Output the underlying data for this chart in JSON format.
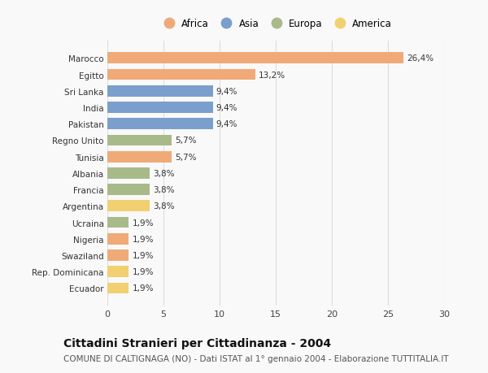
{
  "categories": [
    "Marocco",
    "Egitto",
    "Sri Lanka",
    "India",
    "Pakistan",
    "Regno Unito",
    "Tunisia",
    "Albania",
    "Francia",
    "Argentina",
    "Ucraina",
    "Nigeria",
    "Swaziland",
    "Rep. Dominicana",
    "Ecuador"
  ],
  "values": [
    26.4,
    13.2,
    9.4,
    9.4,
    9.4,
    5.7,
    5.7,
    3.8,
    3.8,
    3.8,
    1.9,
    1.9,
    1.9,
    1.9,
    1.9
  ],
  "labels": [
    "26,4%",
    "13,2%",
    "9,4%",
    "9,4%",
    "9,4%",
    "5,7%",
    "5,7%",
    "3,8%",
    "3,8%",
    "3,8%",
    "1,9%",
    "1,9%",
    "1,9%",
    "1,9%",
    "1,9%"
  ],
  "continents": [
    "Africa",
    "Africa",
    "Asia",
    "Asia",
    "Asia",
    "Europa",
    "Africa",
    "Europa",
    "Europa",
    "America",
    "Europa",
    "Africa",
    "Africa",
    "America",
    "America"
  ],
  "continent_colors": {
    "Africa": "#F0AA78",
    "Asia": "#7B9FCC",
    "Europa": "#A8BA8A",
    "America": "#F0D070"
  },
  "legend_order": [
    "Africa",
    "Asia",
    "Europa",
    "America"
  ],
  "xlim": [
    0,
    30
  ],
  "xticks": [
    0,
    5,
    10,
    15,
    20,
    25,
    30
  ],
  "title": "Cittadini Stranieri per Cittadinanza - 2004",
  "subtitle": "COMUNE DI CALTIGNAGA (NO) - Dati ISTAT al 1° gennaio 2004 - Elaborazione TUTTITALIA.IT",
  "title_fontsize": 10,
  "subtitle_fontsize": 7.5,
  "background_color": "#f9f9f9",
  "grid_color": "#dddddd"
}
